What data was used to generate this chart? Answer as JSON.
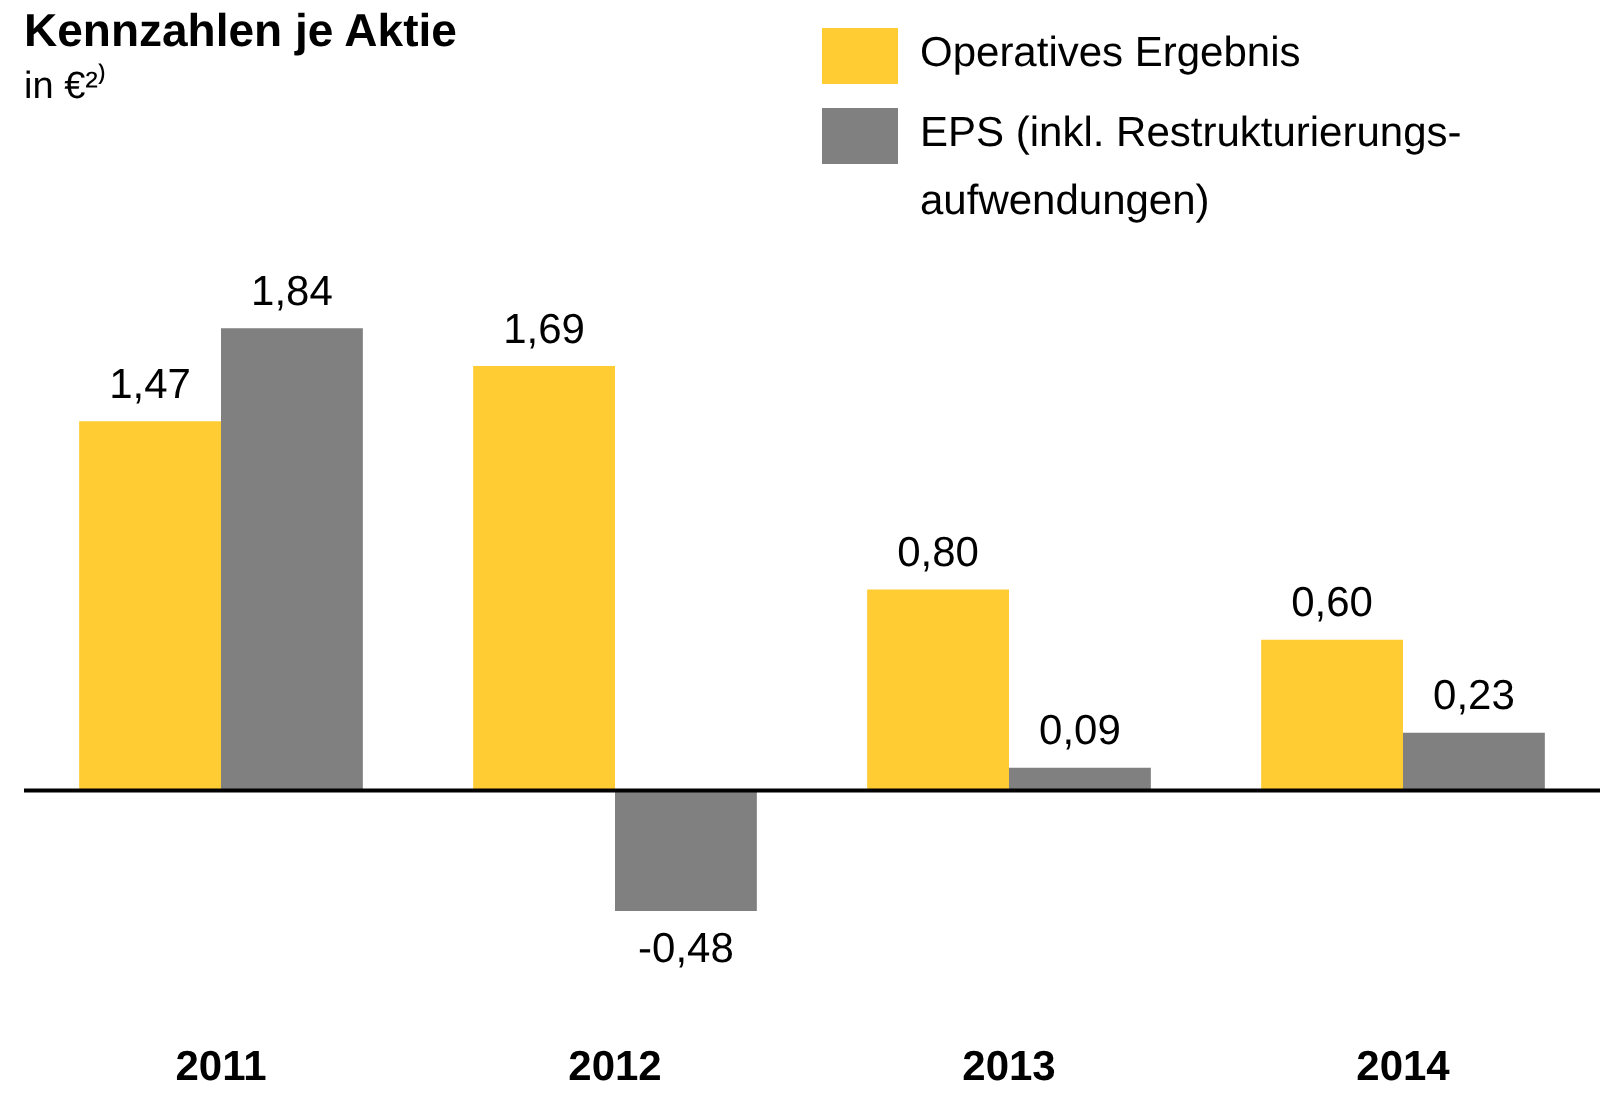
{
  "chart_data": {
    "type": "bar",
    "title": "Kennzahlen je Aktie",
    "subtitle": "in €²⁾",
    "categories": [
      "2011",
      "2012",
      "2013",
      "2014"
    ],
    "series": [
      {
        "name": "Operatives Ergebnis",
        "color": "#ffcc33",
        "values": [
          1.47,
          1.69,
          0.8,
          0.6
        ],
        "value_labels": [
          "1,47",
          "1,69",
          "0,80",
          "0,60"
        ]
      },
      {
        "name": "EPS (inkl. Restrukturierungs-aufwendungen)",
        "color": "#808080",
        "values": [
          1.84,
          -0.48,
          0.09,
          0.23
        ],
        "value_labels": [
          "1,84",
          "-0,48",
          "0,09",
          "0,23"
        ]
      }
    ],
    "legend": "top right",
    "tick_labels": "x"
  }
}
